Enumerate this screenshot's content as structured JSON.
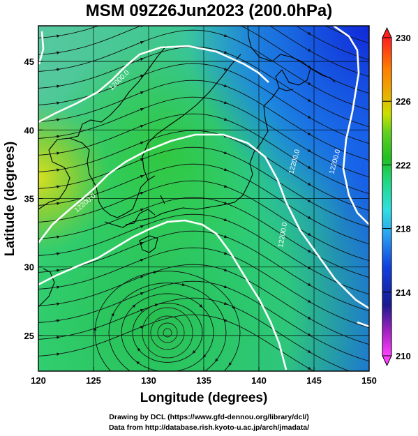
{
  "title": "MSM 09Z26Jun2023 (200.0hPa)",
  "credits": {
    "line1": "Drawing by DCL (https://www.gfd-dennou.org/library/dcl/)",
    "line2": "Data from http://database.rish.kyoto-u.ac.jp/arch/jmadata/"
  },
  "chart_data": {
    "type": "heatmap",
    "title": "MSM 09Z26Jun2023 (200.0hPa)",
    "xlabel": "Longitude (degrees)",
    "ylabel": "Latitude  (degrees)",
    "xlim": [
      120,
      150
    ],
    "ylim": [
      22.4,
      47.6
    ],
    "x_ticks": [
      120,
      125,
      130,
      135,
      140,
      145,
      150
    ],
    "y_ticks": [
      25,
      30,
      35,
      40,
      45
    ],
    "grid": true,
    "colorbar": {
      "range": [
        210,
        230
      ],
      "labels": [
        230,
        226,
        222,
        218,
        214,
        210
      ],
      "colors": [
        "#ff40ff",
        "#1a1a90",
        "#1040e0",
        "#2aa0f0",
        "#30e0e0",
        "#20d880",
        "#20c020",
        "#60d020",
        "#c8e000",
        "#e8b000",
        "#ff8000",
        "#ff4000",
        "#ff2020"
      ]
    },
    "contour_labels": [
      "12000.0",
      "12200.0",
      "12200.0",
      "12200.0",
      "12200.0"
    ],
    "fields": [
      "temperature",
      "geopotential-height",
      "wind-streamlines"
    ]
  }
}
